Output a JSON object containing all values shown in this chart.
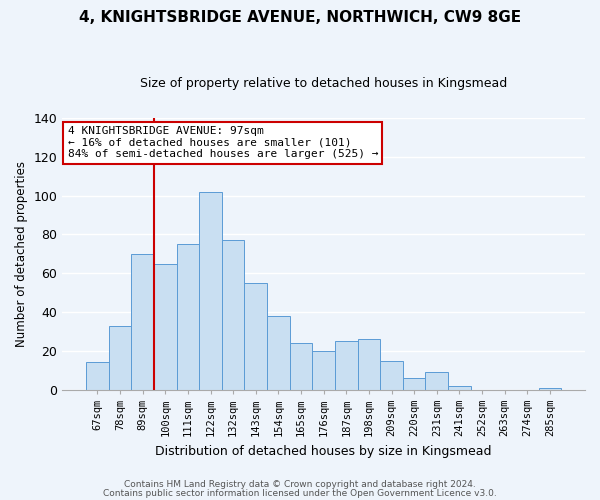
{
  "title": "4, KNIGHTSBRIDGE AVENUE, NORTHWICH, CW9 8GE",
  "subtitle": "Size of property relative to detached houses in Kingsmead",
  "xlabel": "Distribution of detached houses by size in Kingsmead",
  "ylabel": "Number of detached properties",
  "bar_labels": [
    "67sqm",
    "78sqm",
    "89sqm",
    "100sqm",
    "111sqm",
    "122sqm",
    "132sqm",
    "143sqm",
    "154sqm",
    "165sqm",
    "176sqm",
    "187sqm",
    "198sqm",
    "209sqm",
    "220sqm",
    "231sqm",
    "241sqm",
    "252sqm",
    "263sqm",
    "274sqm",
    "285sqm"
  ],
  "bar_heights": [
    14,
    33,
    70,
    65,
    75,
    102,
    77,
    55,
    38,
    24,
    20,
    25,
    26,
    15,
    6,
    9,
    2,
    0,
    0,
    0,
    1
  ],
  "bar_color": "#c9dff2",
  "bar_edge_color": "#5b9bd5",
  "vline_color": "#cc0000",
  "ylim": [
    0,
    140
  ],
  "yticks": [
    0,
    20,
    40,
    60,
    80,
    100,
    120,
    140
  ],
  "annotation_line1": "4 KNIGHTSBRIDGE AVENUE: 97sqm",
  "annotation_line2": "← 16% of detached houses are smaller (101)",
  "annotation_line3": "84% of semi-detached houses are larger (525) →",
  "annotation_box_facecolor": "white",
  "annotation_box_edgecolor": "#cc0000",
  "footer_line1": "Contains HM Land Registry data © Crown copyright and database right 2024.",
  "footer_line2": "Contains public sector information licensed under the Open Government Licence v3.0.",
  "background_color": "#eef4fb",
  "grid_color": "white",
  "title_fontsize": 11,
  "subtitle_fontsize": 9,
  "annotation_fontsize": 8,
  "footer_fontsize": 6.5
}
